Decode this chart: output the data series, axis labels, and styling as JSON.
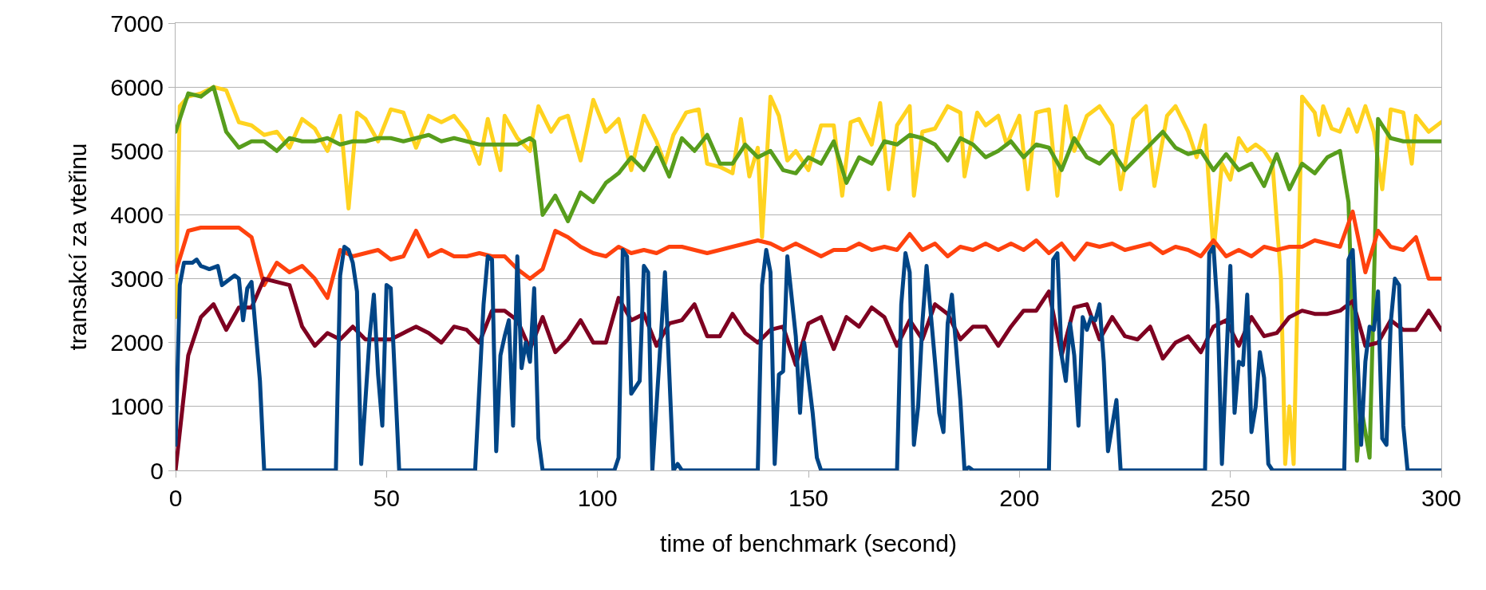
{
  "chart_data": {
    "type": "line",
    "xlabel": "time of benchmark (second)",
    "ylabel": "transakcí za vteřinu",
    "xlim": [
      0,
      300
    ],
    "xticks": [
      0,
      50,
      100,
      150,
      200,
      250,
      300
    ],
    "ylim": [
      0,
      7000
    ],
    "yticks": [
      0,
      1000,
      2000,
      3000,
      4000,
      5000,
      6000,
      7000
    ],
    "grid": "y",
    "marker": "none",
    "line_style": "solid",
    "series": [
      {
        "color": "#ffd320",
        "x": [
          0,
          1,
          3,
          6,
          9,
          12,
          15,
          18,
          21,
          24,
          27,
          30,
          33,
          36,
          39,
          41,
          43,
          45,
          48,
          51,
          54,
          57,
          60,
          63,
          66,
          69,
          72,
          74,
          77,
          78,
          81,
          84,
          86,
          89,
          91,
          93,
          96,
          99,
          102,
          105,
          108,
          111,
          114,
          116,
          118,
          121,
          124,
          126,
          129,
          132,
          134,
          136,
          138,
          139,
          141,
          143,
          145,
          147,
          150,
          153,
          156,
          158,
          160,
          162,
          165,
          167,
          169,
          171,
          174,
          175,
          177,
          180,
          183,
          186,
          187,
          190,
          192,
          195,
          197,
          200,
          202,
          204,
          207,
          209,
          211,
          213,
          216,
          219,
          222,
          224,
          227,
          230,
          232,
          235,
          237,
          240,
          242,
          244,
          246,
          248,
          250,
          252,
          254,
          256,
          258,
          260,
          262,
          263,
          264,
          265,
          267,
          270,
          271,
          272,
          274,
          276,
          278,
          280,
          282,
          284,
          286,
          288,
          291,
          293,
          294,
          297,
          300
        ],
        "values": [
          2400,
          5700,
          5850,
          5900,
          6000,
          5950,
          5450,
          5400,
          5250,
          5300,
          5050,
          5500,
          5350,
          5000,
          5550,
          4100,
          5600,
          5500,
          5150,
          5650,
          5600,
          5050,
          5550,
          5450,
          5550,
          5300,
          4800,
          5500,
          4700,
          5550,
          5200,
          5000,
          5700,
          5300,
          5500,
          5550,
          4850,
          5800,
          5300,
          5500,
          4700,
          5550,
          5150,
          4800,
          5250,
          5600,
          5650,
          4800,
          4750,
          4650,
          5500,
          4600,
          5050,
          3650,
          5850,
          5550,
          4850,
          5000,
          4700,
          5400,
          5400,
          4300,
          5450,
          5500,
          5100,
          5750,
          4400,
          5400,
          5700,
          4300,
          5300,
          5350,
          5700,
          5600,
          4600,
          5600,
          5400,
          5550,
          5100,
          5550,
          4400,
          5600,
          5650,
          4300,
          5700,
          5000,
          5550,
          5700,
          5400,
          4400,
          5500,
          5700,
          4450,
          5550,
          5700,
          5300,
          4900,
          5400,
          3400,
          4800,
          4550,
          5200,
          5000,
          5100,
          5000,
          4800,
          3000,
          100,
          1000,
          100,
          5850,
          5600,
          5250,
          5700,
          5350,
          5300,
          5650,
          5300,
          5700,
          5300,
          4400,
          5650,
          5600,
          4800,
          5550,
          5300,
          5450
        ]
      },
      {
        "color": "#579d1c",
        "x": [
          0,
          3,
          6,
          9,
          12,
          15,
          18,
          21,
          24,
          27,
          30,
          33,
          36,
          39,
          42,
          45,
          48,
          51,
          54,
          57,
          60,
          63,
          66,
          69,
          72,
          75,
          78,
          81,
          84,
          85,
          87,
          90,
          93,
          96,
          99,
          102,
          105,
          108,
          111,
          114,
          117,
          120,
          123,
          126,
          129,
          132,
          135,
          138,
          141,
          144,
          147,
          150,
          153,
          156,
          159,
          162,
          165,
          168,
          171,
          174,
          177,
          180,
          183,
          186,
          189,
          192,
          195,
          198,
          201,
          204,
          207,
          210,
          213,
          216,
          219,
          222,
          225,
          228,
          231,
          234,
          237,
          240,
          243,
          246,
          249,
          252,
          255,
          258,
          261,
          264,
          267,
          270,
          273,
          276,
          278,
          280,
          281,
          283,
          285,
          288,
          291,
          294,
          297,
          300
        ],
        "values": [
          5300,
          5900,
          5850,
          6000,
          5300,
          5050,
          5150,
          5150,
          5000,
          5200,
          5150,
          5150,
          5200,
          5100,
          5150,
          5150,
          5200,
          5200,
          5150,
          5200,
          5250,
          5150,
          5200,
          5150,
          5100,
          5100,
          5100,
          5100,
          5200,
          5150,
          4000,
          4300,
          3900,
          4350,
          4200,
          4500,
          4650,
          4900,
          4700,
          5050,
          4600,
          5200,
          5000,
          5250,
          4800,
          4800,
          5100,
          4900,
          5000,
          4700,
          4650,
          4900,
          4800,
          5150,
          4500,
          4900,
          4800,
          5150,
          5100,
          5250,
          5200,
          5100,
          4850,
          5200,
          5100,
          4900,
          5000,
          5150,
          4900,
          5100,
          5050,
          4700,
          5200,
          4900,
          4800,
          5000,
          4700,
          4900,
          5100,
          5300,
          5050,
          4950,
          5000,
          4700,
          4950,
          4700,
          4800,
          4450,
          4950,
          4400,
          4800,
          4650,
          4900,
          5000,
          4200,
          150,
          1000,
          200,
          5500,
          5200,
          5150,
          5150,
          5150,
          5150
        ]
      },
      {
        "color": "#ff420e",
        "x": [
          0,
          3,
          6,
          9,
          12,
          15,
          18,
          21,
          24,
          27,
          30,
          33,
          36,
          39,
          42,
          45,
          48,
          51,
          54,
          57,
          60,
          63,
          66,
          69,
          72,
          75,
          78,
          81,
          84,
          87,
          90,
          93,
          96,
          99,
          102,
          105,
          108,
          111,
          114,
          117,
          120,
          123,
          126,
          129,
          132,
          135,
          138,
          141,
          144,
          147,
          150,
          153,
          156,
          159,
          162,
          165,
          168,
          171,
          174,
          177,
          180,
          183,
          186,
          189,
          192,
          195,
          198,
          201,
          204,
          207,
          210,
          213,
          216,
          219,
          222,
          225,
          228,
          231,
          234,
          237,
          240,
          243,
          246,
          249,
          252,
          255,
          258,
          261,
          264,
          267,
          270,
          273,
          276,
          279,
          282,
          285,
          288,
          291,
          294,
          297,
          300
        ],
        "values": [
          3100,
          3750,
          3800,
          3800,
          3800,
          3800,
          3650,
          2900,
          3250,
          3100,
          3200,
          3000,
          2700,
          3450,
          3350,
          3400,
          3450,
          3300,
          3350,
          3750,
          3350,
          3450,
          3350,
          3350,
          3400,
          3350,
          3350,
          3150,
          3000,
          3150,
          3750,
          3650,
          3500,
          3400,
          3350,
          3500,
          3400,
          3450,
          3400,
          3500,
          3500,
          3450,
          3400,
          3450,
          3500,
          3550,
          3600,
          3550,
          3450,
          3550,
          3450,
          3350,
          3450,
          3450,
          3550,
          3450,
          3500,
          3450,
          3700,
          3450,
          3550,
          3350,
          3500,
          3450,
          3550,
          3450,
          3550,
          3450,
          3600,
          3400,
          3550,
          3300,
          3550,
          3500,
          3550,
          3450,
          3500,
          3550,
          3400,
          3500,
          3450,
          3350,
          3600,
          3350,
          3450,
          3350,
          3500,
          3450,
          3500,
          3500,
          3600,
          3550,
          3500,
          4050,
          3100,
          3750,
          3500,
          3450,
          3650,
          3000,
          3000
        ]
      },
      {
        "color": "#7e0021",
        "x": [
          0,
          3,
          6,
          9,
          12,
          15,
          18,
          21,
          24,
          27,
          30,
          33,
          36,
          39,
          42,
          45,
          48,
          51,
          54,
          57,
          60,
          63,
          66,
          69,
          72,
          75,
          78,
          81,
          84,
          87,
          90,
          93,
          96,
          99,
          102,
          105,
          108,
          111,
          114,
          117,
          120,
          123,
          126,
          129,
          132,
          135,
          138,
          141,
          144,
          147,
          150,
          153,
          156,
          159,
          162,
          165,
          168,
          171,
          174,
          177,
          180,
          183,
          186,
          189,
          192,
          195,
          198,
          201,
          204,
          207,
          210,
          213,
          216,
          219,
          222,
          225,
          228,
          231,
          234,
          237,
          240,
          243,
          246,
          249,
          252,
          255,
          258,
          261,
          264,
          267,
          270,
          273,
          276,
          279,
          282,
          285,
          288,
          291,
          294,
          297,
          300
        ],
        "values": [
          0,
          1800,
          2400,
          2600,
          2200,
          2550,
          2550,
          3000,
          2950,
          2900,
          2250,
          1950,
          2150,
          2050,
          2250,
          2050,
          2050,
          2050,
          2150,
          2250,
          2150,
          2000,
          2250,
          2200,
          2000,
          2500,
          2500,
          2350,
          1900,
          2400,
          1850,
          2050,
          2350,
          2000,
          2000,
          2700,
          2350,
          2450,
          1950,
          2300,
          2350,
          2600,
          2100,
          2100,
          2450,
          2150,
          2000,
          2200,
          2250,
          1650,
          2300,
          2400,
          1900,
          2400,
          2250,
          2550,
          2400,
          1950,
          2350,
          2050,
          2600,
          2450,
          2050,
          2250,
          2250,
          1950,
          2250,
          2500,
          2500,
          2800,
          1800,
          2550,
          2600,
          2050,
          2400,
          2100,
          2050,
          2250,
          1750,
          2000,
          2100,
          1850,
          2250,
          2350,
          1950,
          2400,
          2100,
          2150,
          2400,
          2500,
          2450,
          2450,
          2500,
          2650,
          1950,
          2000,
          2350,
          2200,
          2200,
          2500,
          2200
        ]
      },
      {
        "color": "#004586",
        "x": [
          0,
          1,
          2,
          4,
          5,
          6,
          8,
          10,
          11,
          13,
          14,
          15,
          16,
          17,
          18,
          20,
          21,
          38,
          39,
          40,
          41,
          42,
          43,
          44,
          46,
          47,
          48,
          49,
          50,
          51,
          53,
          71,
          73,
          74,
          75,
          76,
          77,
          78,
          79,
          80,
          81,
          82,
          83,
          84,
          85,
          86,
          87,
          104,
          105,
          106,
          107,
          108,
          110,
          111,
          112,
          113,
          116,
          118,
          119,
          120,
          138,
          139,
          140,
          141,
          142,
          143,
          144,
          145,
          147,
          148,
          149,
          151,
          152,
          153,
          171,
          172,
          173,
          174,
          175,
          176,
          177,
          178,
          180,
          181,
          182,
          183,
          184,
          186,
          187,
          188,
          189,
          207,
          208,
          209,
          210,
          211,
          212,
          213,
          214,
          215,
          216,
          217,
          218,
          219,
          220,
          221,
          223,
          224,
          244,
          245,
          246,
          247,
          248,
          250,
          251,
          252,
          253,
          254,
          255,
          256,
          257,
          258,
          259,
          260,
          277,
          278,
          279,
          280,
          281,
          282,
          283,
          284,
          285,
          286,
          287,
          288,
          289,
          290,
          291,
          292,
          300
        ],
        "values": [
          400,
          2900,
          3250,
          3250,
          3300,
          3200,
          3150,
          3200,
          2900,
          3000,
          3050,
          3000,
          2350,
          2850,
          2950,
          1400,
          0,
          0,
          3050,
          3500,
          3450,
          3250,
          2800,
          100,
          2100,
          2750,
          1500,
          700,
          2900,
          2850,
          0,
          0,
          2600,
          3350,
          3300,
          300,
          1800,
          2100,
          2350,
          700,
          3350,
          1600,
          2000,
          1700,
          2850,
          500,
          0,
          0,
          200,
          3450,
          3350,
          1200,
          1400,
          3200,
          3100,
          0,
          3100,
          0,
          100,
          0,
          0,
          2900,
          3450,
          3100,
          100,
          1500,
          1550,
          3350,
          2100,
          900,
          2000,
          900,
          200,
          0,
          0,
          2600,
          3400,
          3100,
          400,
          1000,
          2300,
          3200,
          1700,
          900,
          600,
          2300,
          2750,
          1100,
          0,
          50,
          0,
          0,
          3300,
          3400,
          1800,
          1400,
          2300,
          1800,
          700,
          2400,
          2200,
          2400,
          2350,
          2600,
          1700,
          300,
          1100,
          0,
          0,
          3400,
          3500,
          2500,
          100,
          3200,
          900,
          1700,
          1650,
          2750,
          600,
          1000,
          1850,
          1450,
          100,
          0,
          0,
          3300,
          3450,
          2000,
          400,
          1700,
          2250,
          2200,
          2800,
          500,
          400,
          2300,
          3000,
          2900,
          700,
          0,
          0
        ]
      }
    ]
  }
}
